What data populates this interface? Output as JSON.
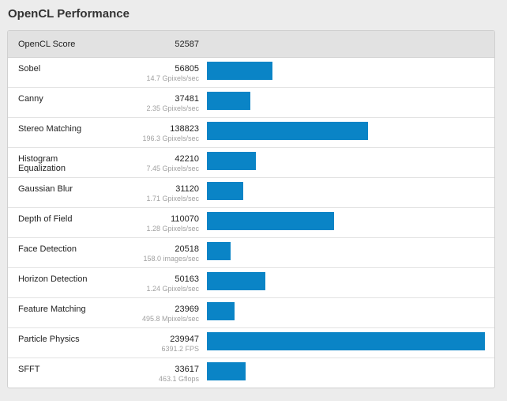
{
  "heading": "OpenCL Performance",
  "colors": {
    "bar": "#0a84c6",
    "header_bg": "#e2e2e2"
  },
  "summary": {
    "label": "OpenCL Score",
    "score": "52587"
  },
  "max_score": 239947,
  "rows": [
    {
      "label": "Sobel",
      "score": "56805",
      "value": 56805,
      "rate": "14.7 Gpixels/sec"
    },
    {
      "label": "Canny",
      "score": "37481",
      "value": 37481,
      "rate": "2.35 Gpixels/sec"
    },
    {
      "label": "Stereo Matching",
      "score": "138823",
      "value": 138823,
      "rate": "196.3 Gpixels/sec"
    },
    {
      "label": "Histogram\nEqualization",
      "score": "42210",
      "value": 42210,
      "rate": "7.45 Gpixels/sec"
    },
    {
      "label": "Gaussian Blur",
      "score": "31120",
      "value": 31120,
      "rate": "1.71 Gpixels/sec"
    },
    {
      "label": "Depth of Field",
      "score": "110070",
      "value": 110070,
      "rate": "1.28 Gpixels/sec"
    },
    {
      "label": "Face Detection",
      "score": "20518",
      "value": 20518,
      "rate": "158.0 images/sec"
    },
    {
      "label": "Horizon Detection",
      "score": "50163",
      "value": 50163,
      "rate": "1.24 Gpixels/sec"
    },
    {
      "label": "Feature Matching",
      "score": "23969",
      "value": 23969,
      "rate": "495.8 Mpixels/sec"
    },
    {
      "label": "Particle Physics",
      "score": "239947",
      "value": 239947,
      "rate": "6391.2 FPS"
    },
    {
      "label": "SFFT",
      "score": "33617",
      "value": 33617,
      "rate": "463.1 Gflops"
    }
  ]
}
